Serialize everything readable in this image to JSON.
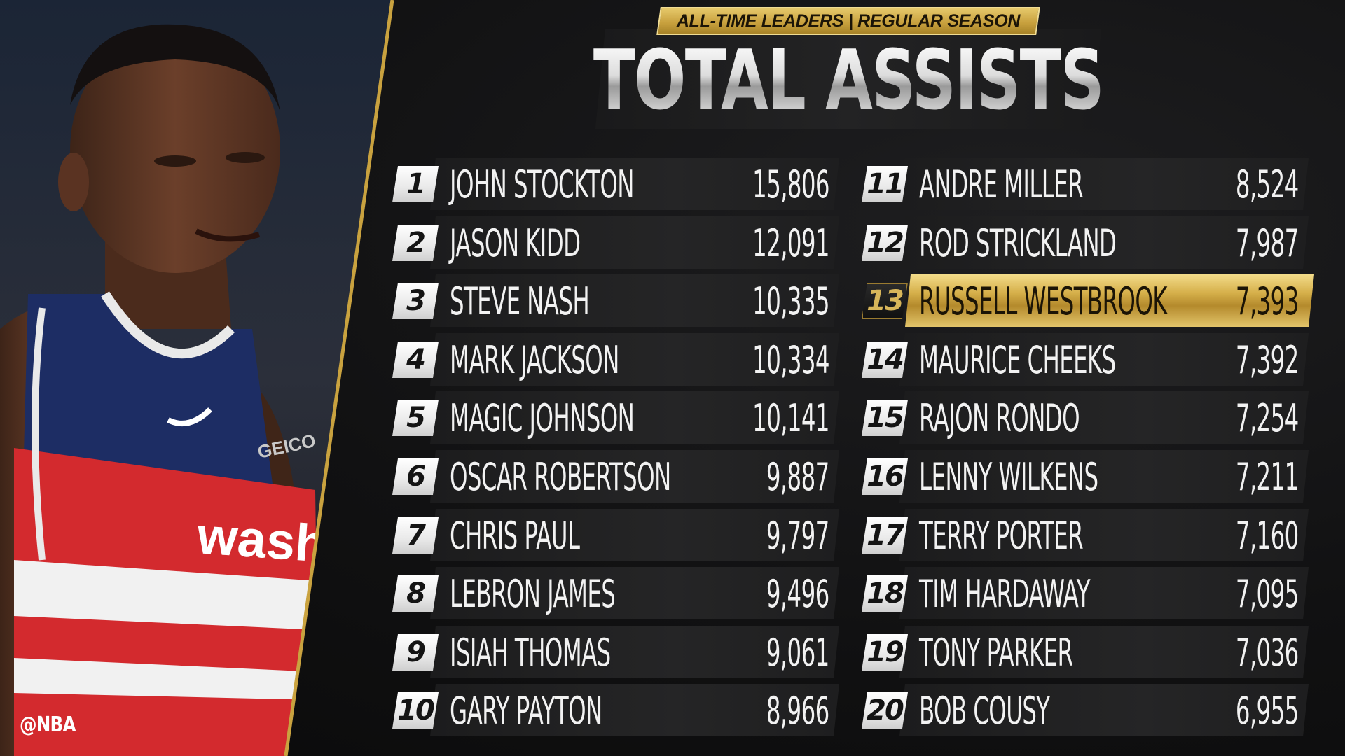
{
  "header": {
    "subtitle": "ALL-TIME LEADERS | REGULAR SEASON",
    "title": "TOTAL ASSISTS"
  },
  "watermark": "@NBA",
  "colors": {
    "gold": "#c9a23f",
    "background": "#0d0d0e",
    "row": "#232324"
  },
  "photo": {
    "description_icon": "player-photo",
    "jersey_text": "washington"
  },
  "leaders": [
    {
      "rank": "1",
      "name": "JOHN STOCKTON",
      "assists": "15,806"
    },
    {
      "rank": "2",
      "name": "JASON KIDD",
      "assists": "12,091"
    },
    {
      "rank": "3",
      "name": "STEVE NASH",
      "assists": "10,335"
    },
    {
      "rank": "4",
      "name": "MARK JACKSON",
      "assists": "10,334"
    },
    {
      "rank": "5",
      "name": "MAGIC JOHNSON",
      "assists": "10,141"
    },
    {
      "rank": "6",
      "name": "OSCAR ROBERTSON",
      "assists": "9,887"
    },
    {
      "rank": "7",
      "name": "CHRIS PAUL",
      "assists": "9,797"
    },
    {
      "rank": "8",
      "name": "LEBRON JAMES",
      "assists": "9,496"
    },
    {
      "rank": "9",
      "name": "ISIAH THOMAS",
      "assists": "9,061"
    },
    {
      "rank": "10",
      "name": "GARY PAYTON",
      "assists": "8,966"
    },
    {
      "rank": "11",
      "name": "ANDRE MILLER",
      "assists": "8,524"
    },
    {
      "rank": "12",
      "name": "ROD STRICKLAND",
      "assists": "7,987"
    },
    {
      "rank": "13",
      "name": "RUSSELL WESTBROOK",
      "assists": "7,393",
      "highlight": true
    },
    {
      "rank": "14",
      "name": "MAURICE CHEEKS",
      "assists": "7,392"
    },
    {
      "rank": "15",
      "name": "RAJON RONDO",
      "assists": "7,254"
    },
    {
      "rank": "16",
      "name": "LENNY WILKENS",
      "assists": "7,211"
    },
    {
      "rank": "17",
      "name": "TERRY PORTER",
      "assists": "7,160"
    },
    {
      "rank": "18",
      "name": "TIM HARDAWAY",
      "assists": "7,095"
    },
    {
      "rank": "19",
      "name": "TONY PARKER",
      "assists": "7,036"
    },
    {
      "rank": "20",
      "name": "BOB COUSY",
      "assists": "6,955"
    }
  ]
}
